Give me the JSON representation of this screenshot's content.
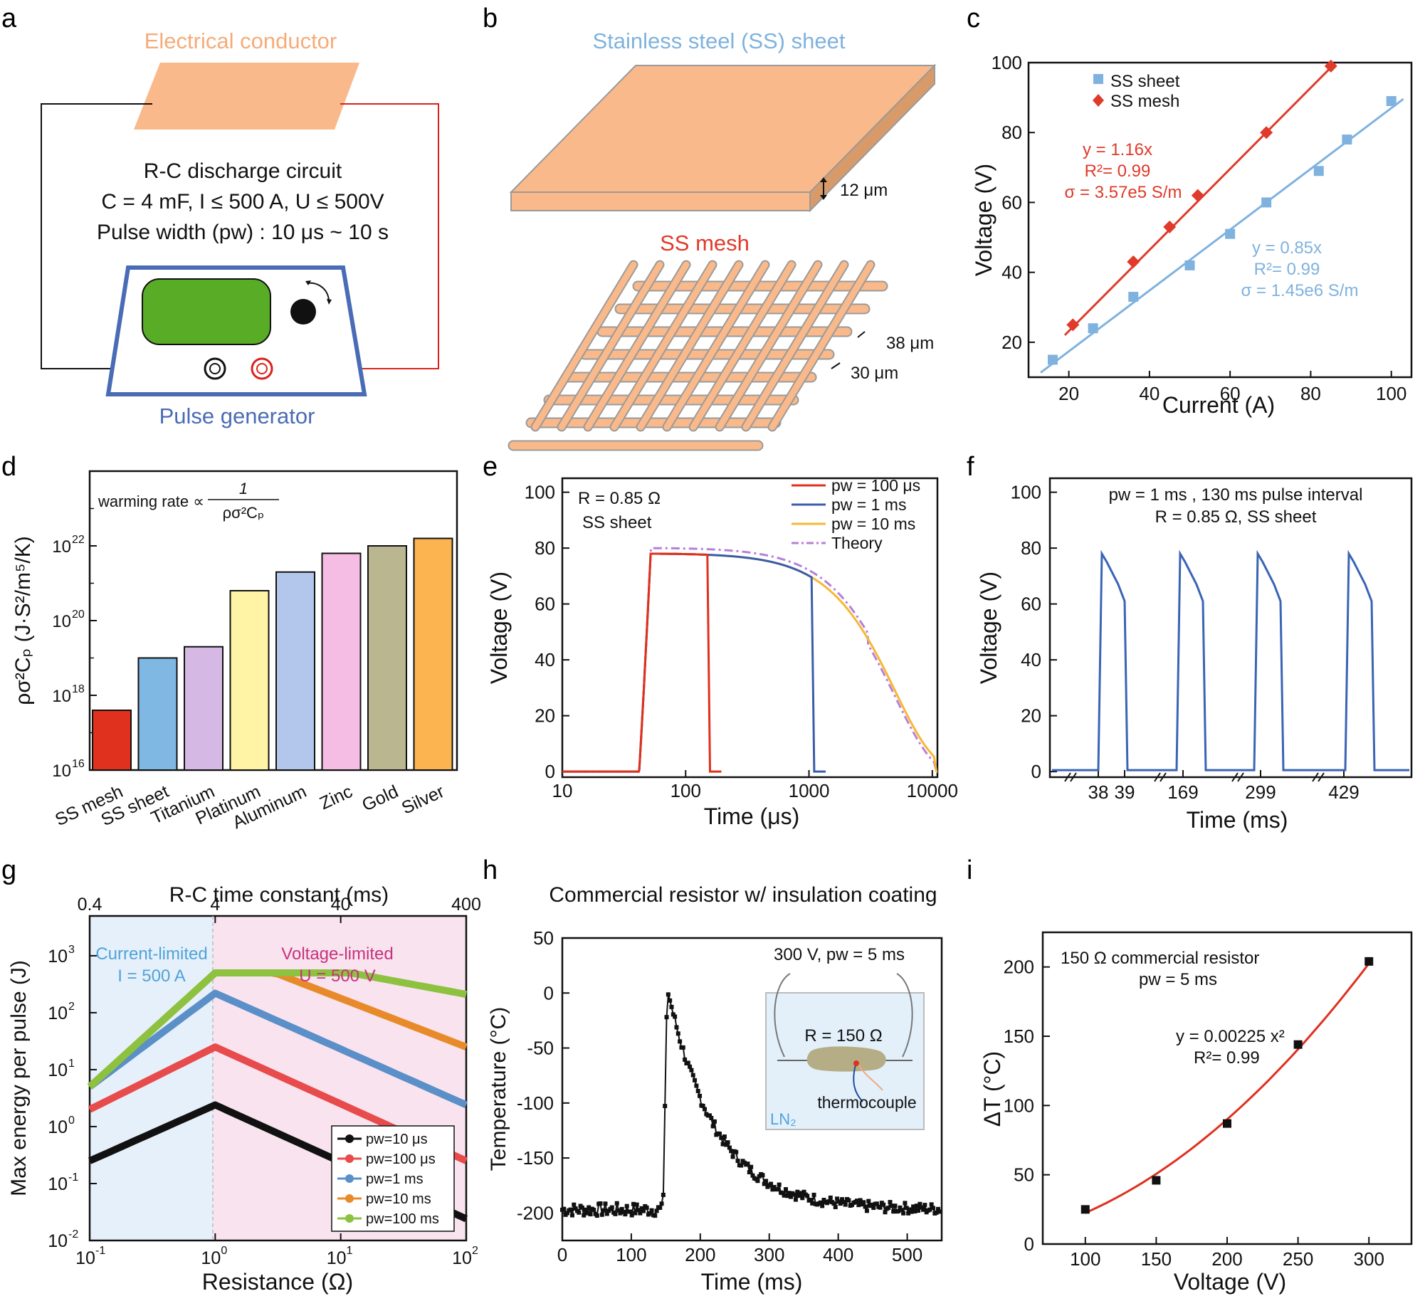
{
  "panel_labels": [
    "a",
    "b",
    "c",
    "d",
    "e",
    "f",
    "g",
    "h",
    "i"
  ],
  "panel_a": {
    "conductor_label": "Electrical conductor",
    "circuit_title": "R-C discharge circuit",
    "circuit_spec": "C = 4 mF, I ≤ 500 A, U ≤ 500V",
    "pulse_width": "Pulse width (pw) : 10 μs ~ 10 s",
    "generator_label": "Pulse generator",
    "colors": {
      "conductor": "#f9b98a",
      "screen": "#59ac26",
      "frame": "#4a6bb5",
      "wire_left": "#111111",
      "wire_right": "#d8231b"
    }
  },
  "panel_b": {
    "sheet_label": "Stainless steel (SS) sheet",
    "sheet_thickness": "12 μm",
    "mesh_label": "SS mesh",
    "mesh_dim_1": "38 μm",
    "mesh_dim_2": "30 μm",
    "colors": {
      "sheet_label": "#7fb2de",
      "mesh_label": "#e03a2a",
      "fill": "#f9b98a"
    }
  },
  "panel_c": {
    "chart_data": {
      "type": "scatter",
      "xlabel": "Current (A)",
      "ylabel": "Voltage (V)",
      "xlim": [
        10,
        105
      ],
      "ylim": [
        10,
        100
      ],
      "xticks": [
        "20",
        "40",
        "60",
        "80",
        "100"
      ],
      "yticks": [
        "20",
        "40",
        "60",
        "80",
        "100"
      ],
      "series": [
        {
          "name": "SS sheet",
          "color": "#7fb2de",
          "x": [
            16,
            26,
            36,
            50,
            60,
            69,
            82,
            89,
            100
          ],
          "y": [
            15,
            24,
            33,
            42,
            51,
            60,
            69,
            78,
            89
          ],
          "fit": {
            "equation": "y = 0.85x",
            "r2": "R²= 0.99",
            "sigma": "σ = 1.45e6 S/m"
          }
        },
        {
          "name": "SS mesh",
          "color": "#e03a2a",
          "x": [
            21,
            36,
            45,
            52,
            69,
            85
          ],
          "y": [
            25,
            43,
            53,
            62,
            80,
            99
          ],
          "fit": {
            "equation": "y = 1.16x",
            "r2": "R²= 0.99",
            "sigma": "σ = 3.57e5 S/m"
          }
        }
      ]
    }
  },
  "panel_d": {
    "chart_data": {
      "type": "bar",
      "ylabel": "ρσ²Cₚ (J·S²/m⁵/K)",
      "yscale": "log",
      "ylim_log10": [
        16,
        24
      ],
      "ytick_labels": [
        "10",
        "10",
        "10",
        "10"
      ],
      "ytick_exponents": [
        "16",
        "18",
        "20",
        "22"
      ],
      "categories": [
        "SS mesh",
        "SS sheet",
        "Titanium",
        "Platinum",
        "Aluminum",
        "Zinc",
        "Gold",
        "Silver"
      ],
      "log10_values": [
        17.6,
        19.0,
        19.3,
        20.8,
        21.3,
        21.8,
        22.0,
        22.2
      ],
      "colors": [
        "#e0301e",
        "#7fb9e3",
        "#d6b8e5",
        "#fff3a6",
        "#b2c7eb",
        "#f5bde3",
        "#bab690",
        "#fbb450"
      ],
      "annotation": "warming rate ∝",
      "annotation_num": "1",
      "annotation_den": "ρσ²Cₚ"
    }
  },
  "panel_e": {
    "chart_data": {
      "type": "line",
      "xlabel": "Time (μs)",
      "ylabel": "Voltage (V)",
      "xscale": "log",
      "xlim": [
        10,
        11000
      ],
      "ylim": [
        -2,
        105
      ],
      "xticks": [
        "10",
        "100",
        "1000",
        "10000"
      ],
      "yticks": [
        "0",
        "20",
        "40",
        "60",
        "80",
        "100"
      ],
      "annotations": [
        "R = 0.85 Ω",
        "SS sheet"
      ],
      "series": [
        {
          "name": "pw = 100 μs",
          "color": "#e0301e",
          "cutoff": 150
        },
        {
          "name": "pw = 1 ms",
          "color": "#3a5da8",
          "cutoff": 1050
        },
        {
          "name": "pw = 10 ms",
          "color": "#f7b733",
          "cutoff": 10300
        },
        {
          "name": "Theory",
          "color": "#b77fd9",
          "cutoff": 10300,
          "dashed": true
        }
      ]
    }
  },
  "panel_f": {
    "chart_data": {
      "type": "line",
      "xlabel": "Time (ms)",
      "ylabel": "Voltage (V)",
      "ylim": [
        -2,
        105
      ],
      "yticks": [
        "0",
        "20",
        "40",
        "60",
        "80",
        "100"
      ],
      "xtick_labels": [
        "38",
        "39",
        "169",
        "299",
        "429"
      ],
      "annotation_1": "pw = 1 ms , 130 ms pulse interval",
      "annotation_2": "R = 0.85 Ω,  SS sheet",
      "pulse_peak": 78,
      "pulse_end": 61,
      "color": "#3a64b5"
    }
  },
  "panel_g": {
    "chart_data": {
      "type": "line",
      "xlabel": "Resistance (Ω)",
      "ylabel": "Max energy per pulse (J)",
      "top_xlabel": "R-C time constant  (ms)",
      "top_xticks": [
        "0.4",
        "4",
        "40",
        "400"
      ],
      "xscale": "log",
      "yscale": "log",
      "xtick_exponents": [
        "-1",
        "0",
        "1",
        "2"
      ],
      "ytick_exponents": [
        "-2",
        "-1",
        "0",
        "1",
        "2",
        "3"
      ],
      "region_1": {
        "label": "Current-limited",
        "value": "I = 500 A",
        "color": "#4fa3d9"
      },
      "region_2": {
        "label": "Voltage-limited",
        "value": "U = 500 V",
        "color": "#c8327d"
      },
      "series": [
        {
          "name": "pw=10 μs",
          "color": "#111111",
          "start": 0.25,
          "peak": 2.4,
          "end": 0.024
        },
        {
          "name": "pw=100 μs",
          "color": "#e84b4b",
          "start": 2.0,
          "peak": 25,
          "end": 0.25
        },
        {
          "name": "pw=1 ms",
          "color": "#5a8fc8",
          "start": 5.0,
          "peak": 220,
          "end": 2.4
        },
        {
          "name": "pw=10 ms",
          "color": "#e88a2a",
          "start": 5.0,
          "peak": 500,
          "end": 25
        },
        {
          "name": "pw=100 ms",
          "color": "#8cc23f",
          "start": 5.0,
          "peak": 500,
          "end": 210
        }
      ]
    }
  },
  "panel_h": {
    "title": "Commercial resistor w/  insulation coating",
    "inset_condition": "300 V, pw = 5 ms",
    "inset_resistance": "R = 150 Ω",
    "inset_thermocouple": "thermocouple",
    "inset_ln2": "LN₂",
    "chart_data": {
      "type": "scatter",
      "xlabel": "Time (ms)",
      "ylabel": "Temperature (°C)",
      "xlim": [
        0,
        550
      ],
      "ylim": [
        -225,
        50
      ],
      "xticks": [
        "0",
        "100",
        "200",
        "300",
        "400",
        "500"
      ],
      "yticks": [
        "50",
        "0",
        "-50",
        "-100",
        "-150",
        "-200"
      ],
      "baseline": -197,
      "peak": 5,
      "peak_time": 152
    }
  },
  "panel_i": {
    "chart_data": {
      "type": "scatter",
      "xlabel": "Voltage (V)",
      "ylabel": "ΔT (°C)",
      "xlim": [
        70,
        330
      ],
      "ylim": [
        0,
        225
      ],
      "xticks": [
        "100",
        "150",
        "200",
        "250",
        "300"
      ],
      "yticks": [
        "0",
        "50",
        "100",
        "150",
        "200"
      ],
      "x": [
        100,
        150,
        200,
        250,
        300
      ],
      "y": [
        25,
        46,
        87,
        144,
        204
      ],
      "annotation_1": "150 Ω commercial resistor",
      "annotation_2": "pw = 5 ms",
      "fit_equation": "y = 0.00225 x²",
      "fit_r2": "R²= 0.99",
      "fit_color": "#e0301e"
    }
  }
}
